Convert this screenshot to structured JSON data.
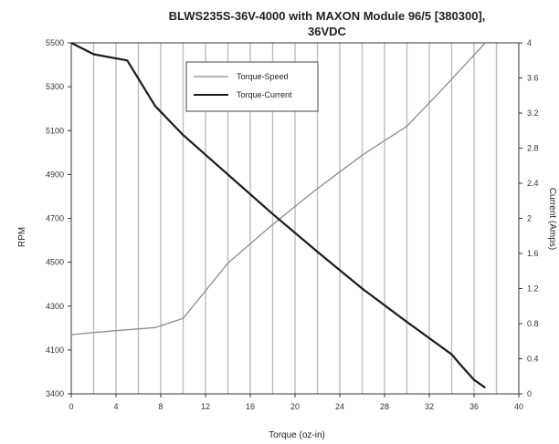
{
  "chart_data": {
    "type": "line",
    "title_line1": "BLWS235S-36V-4000 with MAXON Module 96/5 [380300],",
    "title_line2": "36VDC",
    "xlabel": "Torque (oz-in)",
    "ylabel_left": "RPM",
    "ylabel_right": "Current (Amps)",
    "x_ticks": [
      0,
      4,
      8,
      12,
      16,
      20,
      24,
      28,
      32,
      36,
      40
    ],
    "y_left_ticks": [
      3400,
      4100,
      4300,
      4500,
      4700,
      4900,
      5100,
      5300,
      5500
    ],
    "y_right_ticks": [
      0,
      0.4,
      0.8,
      1.2,
      1.6,
      2,
      2.4,
      2.8,
      3.2,
      3.6,
      4
    ],
    "xlim": [
      0,
      40
    ],
    "ylim_right": [
      0,
      4
    ],
    "grid": "vertical",
    "legend_position": "top-center",
    "series": [
      {
        "name": "Torque-Speed",
        "axis": "left",
        "color": "#8c8c8c",
        "x": [
          0,
          4,
          7.5,
          10,
          14,
          18,
          22,
          26,
          30,
          33,
          37
        ],
        "y_fraction": [
          0.675,
          0.72,
          0.755,
          0.86,
          1.49,
          1.93,
          2.34,
          2.72,
          3.05,
          3.45,
          4.0
        ]
      },
      {
        "name": "Torque-Current",
        "axis": "right",
        "color": "#1a1a1a",
        "x": [
          0,
          2,
          5,
          7.5,
          10,
          14,
          18,
          22,
          26,
          30,
          34,
          35,
          36,
          37
        ],
        "y": [
          4.0,
          3.87,
          3.8,
          3.28,
          2.95,
          2.5,
          2.05,
          1.62,
          1.2,
          0.82,
          0.45,
          0.3,
          0.16,
          0.07
        ]
      }
    ]
  }
}
